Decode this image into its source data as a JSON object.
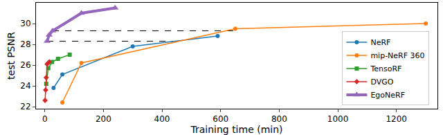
{
  "chart_data": {
    "type": "line",
    "x_label": "Training time (min)",
    "y_label": "test PSNR",
    "xlim": [
      -30,
      1340
    ],
    "xticks": [
      0,
      200,
      400,
      600,
      800,
      1000,
      1200
    ],
    "ylim": [
      21.8,
      32
    ],
    "yticks": [
      22,
      24,
      26,
      28,
      30
    ],
    "grid": false,
    "legend": "lower right",
    "series": [
      {
        "name": "NeRF",
        "color": "#1f77b4",
        "marker": "circle",
        "x": [
          30,
          60,
          300,
          590
        ],
        "values": [
          23.8,
          25.1,
          27.8,
          28.8
        ]
      },
      {
        "name": "mip-NeRF 360",
        "color": "#ff7f0e",
        "marker": "circle",
        "x": [
          60,
          125,
          650,
          1300
        ],
        "values": [
          22.4,
          26.2,
          29.5,
          30.0
        ]
      },
      {
        "name": "TensoRF",
        "color": "#2ca02c",
        "marker": "square",
        "x": [
          5,
          12,
          25,
          45,
          85
        ],
        "values": [
          24.2,
          25.7,
          26.3,
          26.6,
          27.0
        ]
      },
      {
        "name": "DVGO",
        "color": "#d62728",
        "marker": "diamond",
        "x": [
          1,
          3,
          5,
          8,
          15
        ],
        "values": [
          22.6,
          23.6,
          24.8,
          26.1,
          26.3
        ]
      },
      {
        "name": "EgoNeRF",
        "color": "#9467bd",
        "marker": "triangle-up",
        "x": [
          8,
          15,
          27,
          125,
          240
        ],
        "values": [
          28.3,
          28.9,
          29.3,
          31.0,
          31.5
        ]
      }
    ],
    "reference_lines": [
      {
        "x": [
          27,
          650
        ],
        "y": 29.3,
        "color": "#000000",
        "line_style": "dash"
      },
      {
        "x": [
          8,
          459
        ],
        "y": 28.3,
        "color": "#000000",
        "line_style": "dash"
      }
    ]
  }
}
